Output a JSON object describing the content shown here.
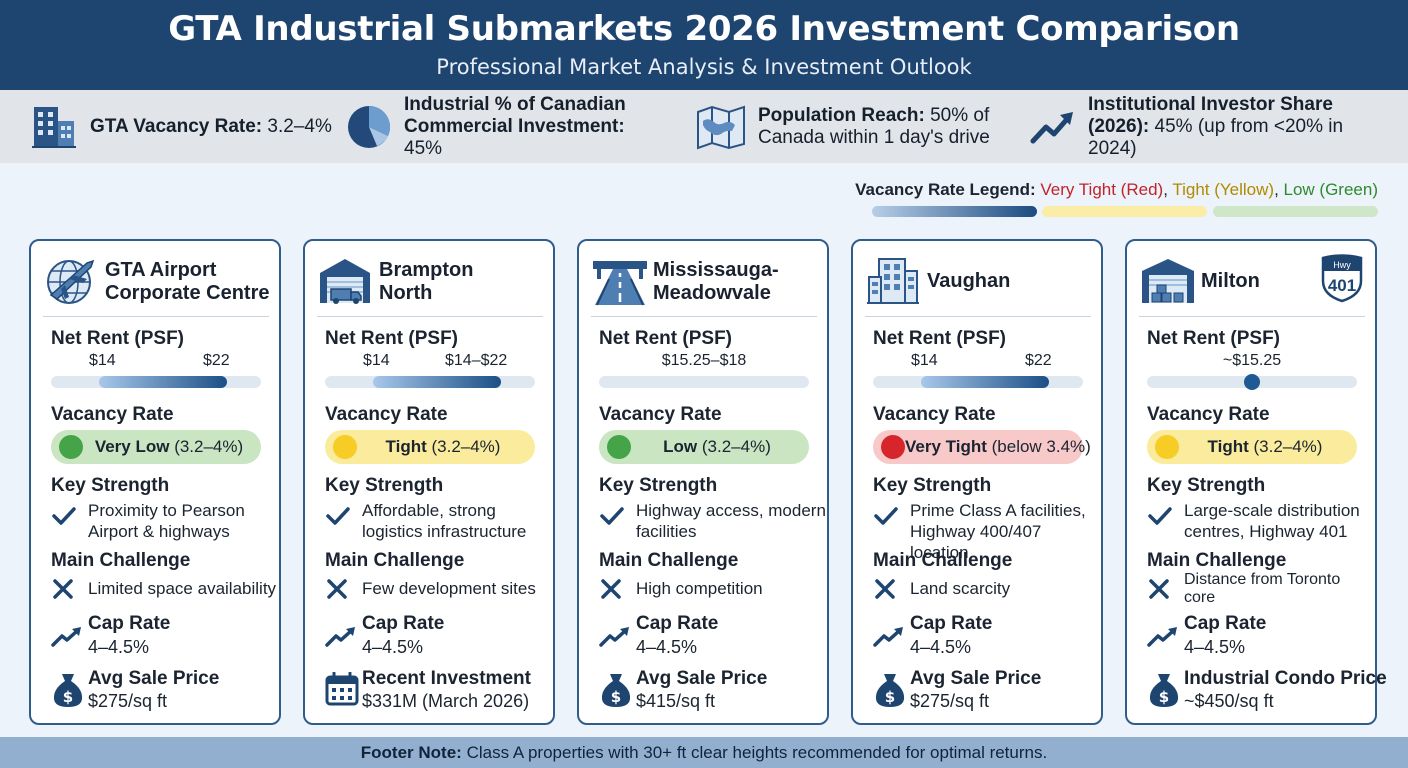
{
  "header": {
    "title": "GTA Industrial Submarkets 2026 Investment Comparison",
    "subtitle": "Professional Market Analysis & Investment Outlook"
  },
  "stats": [
    {
      "icon": "buildings-icon",
      "label": "GTA Vacancy Rate:",
      "value": "3.2–4%"
    },
    {
      "icon": "pie-chart-icon",
      "label": "Industrial % of Canadian Commercial Investment:",
      "value": "45%"
    },
    {
      "icon": "map-icon",
      "label": "Population Reach:",
      "value": "50% of Canada within 1 day's drive"
    },
    {
      "icon": "trend-up-icon",
      "label": "Institutional Investor Share (2026):",
      "value": "45% (up from <20% in 2024)"
    }
  ],
  "legend": {
    "label": "Vacancy Rate Legend:",
    "items": [
      {
        "text": "Very Tight (Red)",
        "color": "#c0232c"
      },
      {
        "text": "Tight (Yellow)",
        "color": "#b08a00"
      },
      {
        "text": "Low (Green)",
        "color": "#2f8a2f"
      }
    ]
  },
  "labels": {
    "rent": "Net Rent (PSF)",
    "vacancy": "Vacancy Rate",
    "strength": "Key Strength",
    "challenge": "Main Challenge",
    "cap": "Cap Rate"
  },
  "status_colors": {
    "very_low": {
      "bg": "#c9e5c2",
      "dot": "#45a447"
    },
    "low": {
      "bg": "#c9e5c2",
      "dot": "#45a447"
    },
    "tight": {
      "bg": "#fbeb9c",
      "dot": "#f6cc25"
    },
    "very_tight": {
      "bg": "#f7c9c9",
      "dot": "#d6262b"
    }
  },
  "cards": [
    {
      "name": "GTA Airport Corporate Centre",
      "icon": "airplane-globe-icon",
      "rent_low": "$14",
      "rent_high": "$22",
      "status": "very_low",
      "vacancy_level": "Very Low",
      "vacancy_range": "(3.2–4%)",
      "strength": "Proximity to Pearson Airport & highways",
      "challenge": "Limited space availability",
      "cap_rate": "4–4.5%",
      "metric_icon": "money-bag-icon",
      "metric_label": "Avg Sale Price",
      "metric_value": "$275/sq ft"
    },
    {
      "name": "Brampton North",
      "icon": "warehouse-truck-icon",
      "rent_low": "$14",
      "rent_high": "$14–$22",
      "status": "tight",
      "vacancy_level": "Tight",
      "vacancy_range": "(3.2–4%)",
      "strength": "Affordable, strong logistics infrastructure",
      "challenge": "Few development sites",
      "cap_rate": "4–4.5%",
      "metric_icon": "calendar-icon",
      "metric_label": "Recent Investment",
      "metric_value": "$331M (March 2026)"
    },
    {
      "name": "Mississauga-Meadowvale",
      "icon": "highway-icon",
      "rent_single": "$15.25–$18",
      "status": "low",
      "vacancy_level": "Low",
      "vacancy_range": "(3.2–4%)",
      "strength": "Highway access, modern facilities",
      "challenge": "High competition",
      "cap_rate": "4–4.5%",
      "metric_icon": "money-bag-icon",
      "metric_label": "Avg Sale Price",
      "metric_value": "$415/sq ft"
    },
    {
      "name": "Vaughan",
      "icon": "office-building-icon",
      "rent_low": "$14",
      "rent_high": "$22",
      "status": "very_tight",
      "vacancy_level": "Very Tight",
      "vacancy_range": "(below 3.4%)",
      "strength": "Prime Class A facilities, Highway 400/407 location",
      "challenge": "Land scarcity",
      "cap_rate": "4–4.5%",
      "metric_icon": "money-bag-icon",
      "metric_label": "Avg Sale Price",
      "metric_value": "$275/sq ft"
    },
    {
      "name": "Milton",
      "icon": "distribution-warehouse-icon",
      "hwy_top": "Hwy",
      "hwy_num": "401",
      "rent_single": "~$15.25",
      "status": "tight",
      "vacancy_level": "Tight",
      "vacancy_range": "(3.2–4%)",
      "strength": "Large-scale distribution centres, Highway 401",
      "challenge": "Distance from Toronto core",
      "cap_rate": "4–4.5%",
      "metric_icon": "money-bag-icon",
      "metric_label": "Industrial Condo Price",
      "metric_value": "~$450/sq ft"
    }
  ],
  "footer": {
    "label": "Footer Note:",
    "text": "Class A properties with 30+ ft clear heights recommended for optimal returns."
  }
}
